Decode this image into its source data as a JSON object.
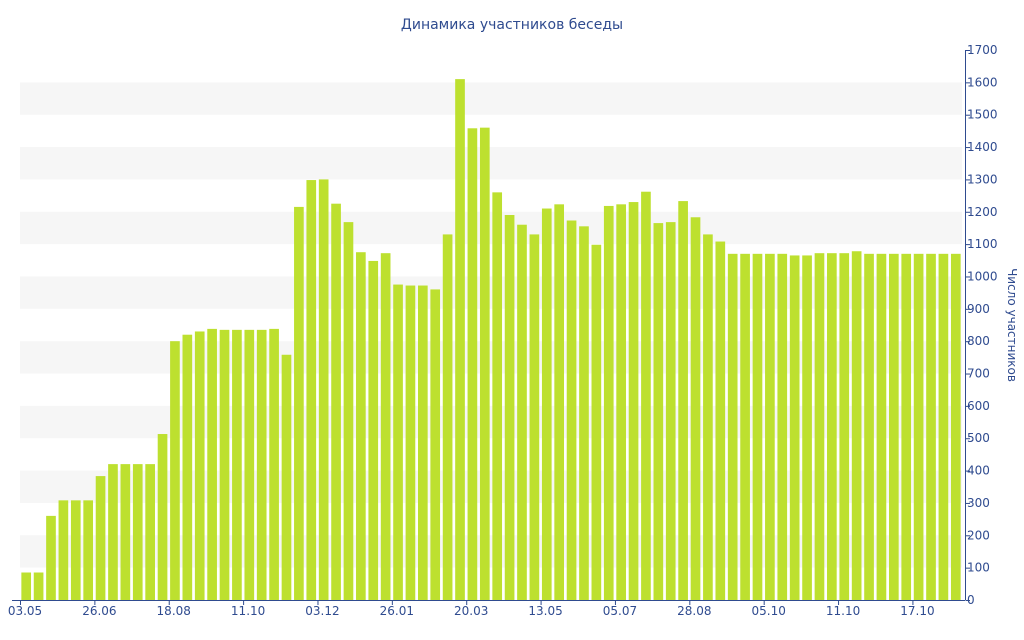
{
  "chart_data": {
    "type": "bar",
    "title": "Динамика участников беседы",
    "xlabel": "",
    "ylabel": "Число участников",
    "ylim": [
      0,
      1700
    ],
    "y_ticks": [
      0,
      100,
      200,
      300,
      400,
      500,
      600,
      700,
      800,
      900,
      1000,
      1100,
      1200,
      1300,
      1400,
      1500,
      1600,
      1700
    ],
    "y_axis_side": "right",
    "x_tick_labels": [
      "03.05",
      "26.06",
      "18.08",
      "11.10",
      "03.12",
      "26.01",
      "20.03",
      "13.05",
      "05.07",
      "28.08",
      "05.10",
      "11.10",
      "17.10"
    ],
    "grid": "alternating horizontal bands",
    "values": [
      85,
      85,
      260,
      308,
      308,
      308,
      383,
      420,
      420,
      420,
      420,
      513,
      800,
      820,
      830,
      838,
      835,
      835,
      835,
      835,
      838,
      758,
      1215,
      1298,
      1300,
      1225,
      1168,
      1075,
      1048,
      1072,
      975,
      972,
      972,
      960,
      1130,
      1610,
      1458,
      1460,
      1260,
      1190,
      1160,
      1130,
      1210,
      1223,
      1173,
      1155,
      1098,
      1218,
      1223,
      1230,
      1262,
      1165,
      1168,
      1233,
      1183,
      1130,
      1108,
      1070,
      1070,
      1070,
      1070,
      1070,
      1065,
      1065,
      1072,
      1072,
      1072,
      1078,
      1070,
      1070,
      1070,
      1070,
      1070,
      1070,
      1070,
      1070
    ],
    "colors": {
      "bar": "#bde02f",
      "band": "#f6f6f6",
      "text": "#2f4b8f",
      "axis": "#2f4b8f"
    }
  }
}
